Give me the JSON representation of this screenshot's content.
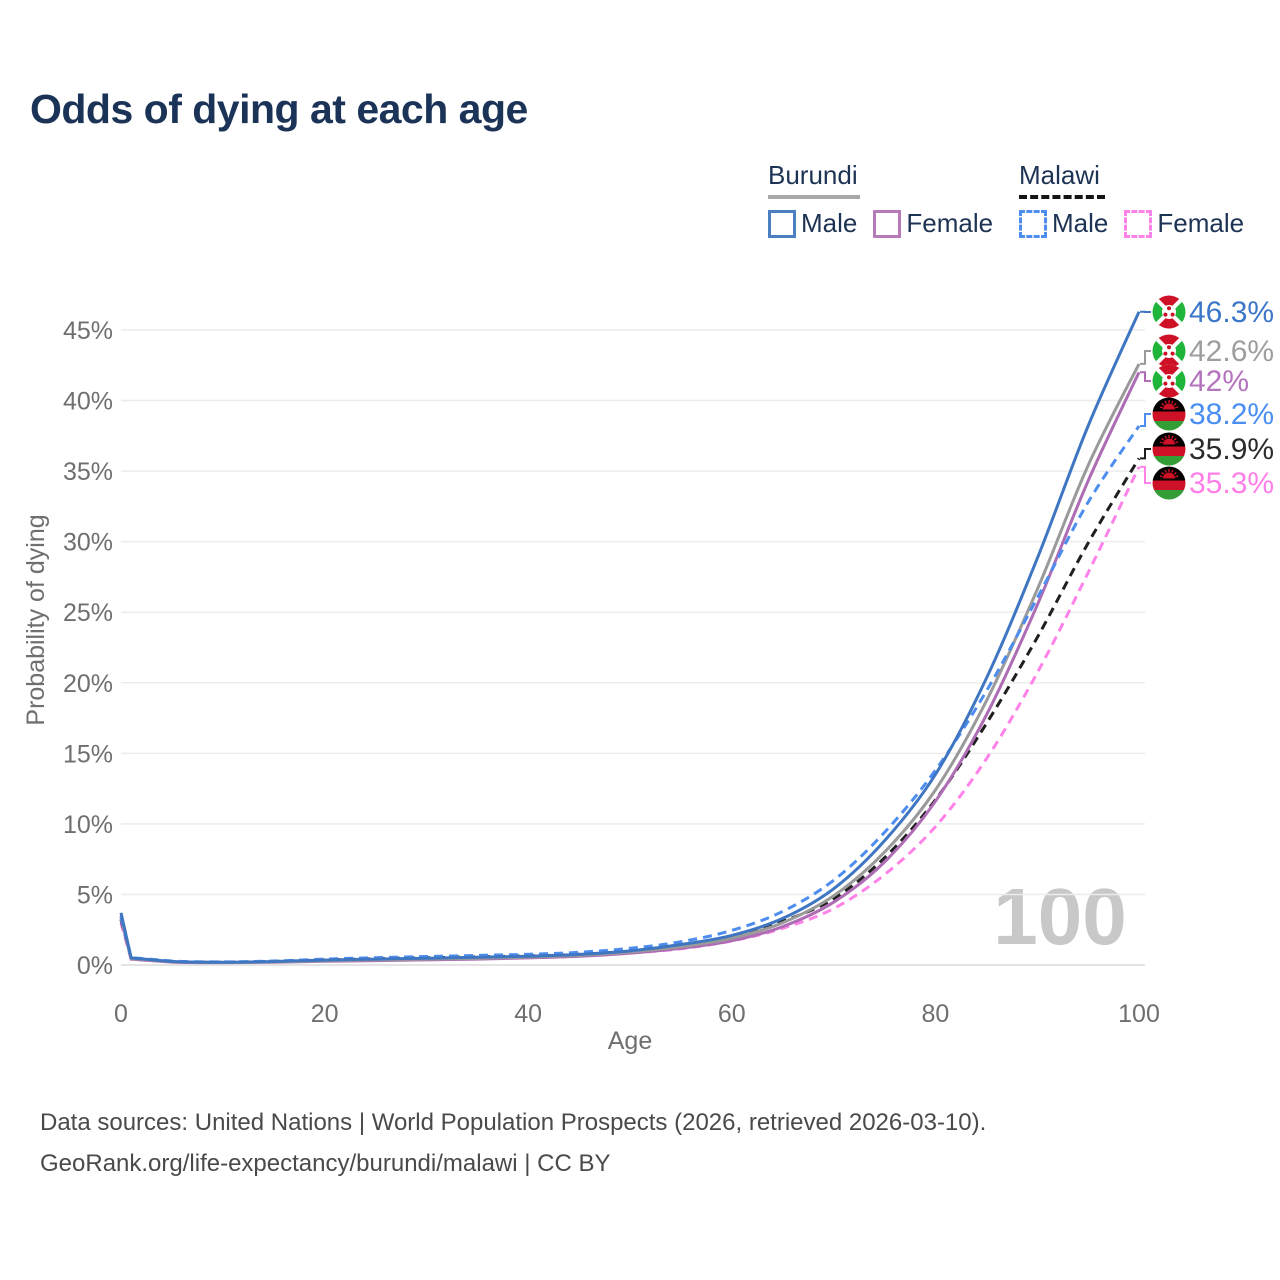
{
  "title": "Odds of dying at each age",
  "watermark": "100",
  "legend": {
    "groups": [
      {
        "label": "Burundi",
        "underline_style": "solid",
        "underline_color": "#a8a8a8",
        "underline_width": 92,
        "items": [
          {
            "label": "Male",
            "swatch_color": "#4a7fc1",
            "swatch_style": "solid"
          },
          {
            "label": "Female",
            "swatch_color": "#b57ab8",
            "swatch_style": "solid"
          }
        ]
      },
      {
        "label": "Malawi",
        "underline_style": "dashed",
        "underline_color": "#141414",
        "underline_width": 86,
        "items": [
          {
            "label": "Male",
            "swatch_color": "#4d8df0",
            "swatch_style": "dashed"
          },
          {
            "label": "Female",
            "swatch_color": "#ff82e9",
            "swatch_style": "dashed"
          }
        ]
      }
    ]
  },
  "chart_data": {
    "type": "line",
    "title": "Odds of dying at each age",
    "xlabel": "Age",
    "ylabel": "Probability of dying",
    "xlim": [
      0,
      100
    ],
    "ylim": [
      0,
      47
    ],
    "x_ticks": [
      0,
      20,
      40,
      60,
      80,
      100
    ],
    "y_ticks": [
      0,
      5,
      10,
      15,
      20,
      25,
      30,
      35,
      40,
      45
    ],
    "y_tick_labels": [
      "0%",
      "5%",
      "10%",
      "15%",
      "20%",
      "25%",
      "30%",
      "35%",
      "40%",
      "45%"
    ],
    "grid": true,
    "legend_position": "top-right",
    "x": [
      0,
      1,
      5,
      10,
      15,
      20,
      25,
      30,
      35,
      40,
      45,
      50,
      55,
      60,
      65,
      70,
      75,
      80,
      85,
      90,
      95,
      100
    ],
    "series": [
      {
        "name": "Malawi Female",
        "country": "Malawi",
        "sex": "Female",
        "style": "dashed",
        "color": "#ff82e9",
        "label_color": "#ff7ee8",
        "flag": "malawi",
        "end_label": "35.3%",
        "end_value": 35.3,
        "values": [
          3.0,
          0.4,
          0.22,
          0.18,
          0.22,
          0.3,
          0.36,
          0.42,
          0.48,
          0.54,
          0.64,
          0.84,
          1.15,
          1.7,
          2.6,
          4.0,
          6.4,
          9.8,
          14.6,
          20.7,
          27.8,
          35.3
        ]
      },
      {
        "name": "Malawi Both sexes",
        "country": "Malawi",
        "sex": "Both sexes",
        "style": "dashed",
        "color": "#1f1f1f",
        "label_color": "#2b2b2b",
        "flag": "malawi",
        "end_label": "35.9%",
        "end_value": 35.9,
        "values": [
          3.2,
          0.46,
          0.25,
          0.2,
          0.25,
          0.36,
          0.44,
          0.51,
          0.58,
          0.64,
          0.76,
          0.98,
          1.38,
          2.0,
          3.1,
          4.7,
          7.6,
          11.7,
          17.1,
          23.2,
          29.9,
          35.9
        ]
      },
      {
        "name": "Burundi Female",
        "country": "Burundi",
        "sex": "Female",
        "style": "solid",
        "color": "#ad6cb3",
        "label_color": "#b473bd",
        "flag": "burundi",
        "end_label": "42%",
        "end_value": 42.0,
        "values": [
          3.3,
          0.42,
          0.2,
          0.17,
          0.2,
          0.26,
          0.31,
          0.36,
          0.42,
          0.5,
          0.62,
          0.84,
          1.18,
          1.72,
          2.72,
          4.45,
          7.3,
          11.6,
          17.7,
          25.5,
          34.3,
          42.0
        ]
      },
      {
        "name": "Burundi Both sexes",
        "country": "Burundi",
        "sex": "Both sexes",
        "style": "solid",
        "color": "#9a9a9a",
        "label_color": "#9e9e9e",
        "flag": "burundi",
        "end_label": "42.6%",
        "end_value": 42.6,
        "values": [
          3.5,
          0.46,
          0.23,
          0.18,
          0.22,
          0.3,
          0.36,
          0.42,
          0.48,
          0.56,
          0.68,
          0.92,
          1.3,
          1.9,
          3.0,
          4.9,
          8.0,
          12.4,
          18.7,
          26.6,
          35.4,
          42.6
        ]
      },
      {
        "name": "Malawi Male",
        "country": "Malawi",
        "sex": "Male",
        "style": "dashed",
        "color": "#4d8df0",
        "label_color": "#4a8ef2",
        "flag": "malawi",
        "end_label": "38.2%",
        "end_value": 38.2,
        "values": [
          3.4,
          0.52,
          0.28,
          0.22,
          0.28,
          0.42,
          0.52,
          0.6,
          0.68,
          0.76,
          0.9,
          1.18,
          1.65,
          2.45,
          3.8,
          6.0,
          9.4,
          13.8,
          19.4,
          26.0,
          32.8,
          38.2
        ]
      },
      {
        "name": "Burundi Male",
        "country": "Burundi",
        "sex": "Male",
        "style": "solid",
        "color": "#3f76c2",
        "label_color": "#3b76c9",
        "flag": "burundi",
        "end_label": "46.3%",
        "end_value": 46.3,
        "values": [
          3.7,
          0.5,
          0.25,
          0.2,
          0.25,
          0.35,
          0.42,
          0.48,
          0.55,
          0.62,
          0.75,
          1.0,
          1.45,
          2.1,
          3.3,
          5.4,
          8.8,
          13.5,
          20.3,
          28.8,
          38.2,
          46.3
        ]
      }
    ],
    "end_labels_order": [
      "46.3%",
      "42.6%",
      "42%",
      "38.2%",
      "35.9%",
      "35.3%"
    ]
  },
  "source": {
    "line1": "Data sources: United Nations | World Population Prospects (2026, retrieved 2026-03-10).",
    "line2": "GeoRank.org/life-expectancy/burundi/malawi | CC BY"
  }
}
